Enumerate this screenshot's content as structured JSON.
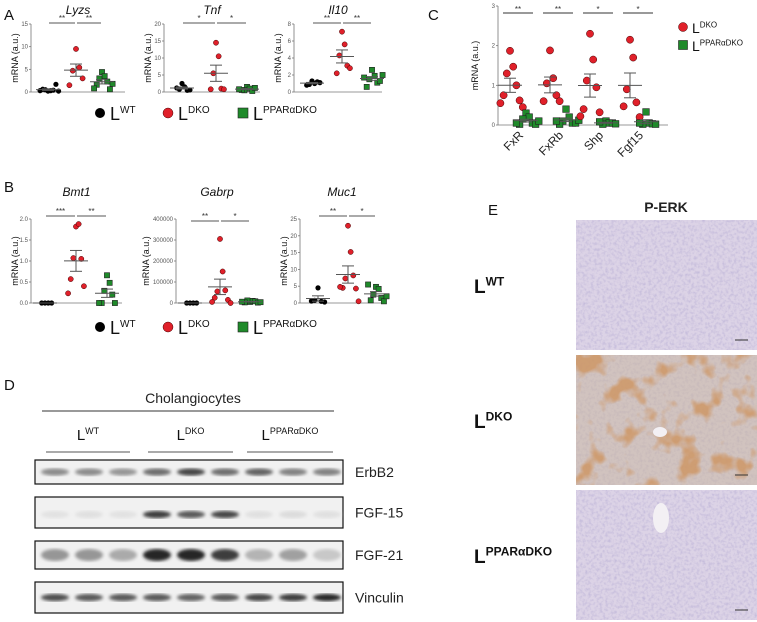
{
  "panel_labels": {
    "A": "A",
    "B": "B",
    "C": "C",
    "D": "D",
    "E": "E"
  },
  "legend": {
    "entries": [
      {
        "base": "L",
        "sup": "WT",
        "marker": "circle",
        "color": "#000000"
      },
      {
        "base": "L",
        "sup": "DKO",
        "marker": "circle",
        "color": "#e0202a"
      },
      {
        "base": "L",
        "sup": "PPARαDKO",
        "marker": "square",
        "color": "#1f8a2a"
      }
    ]
  },
  "colors": {
    "wt": "#000000",
    "dko": "#e0202a",
    "ppar": "#1f8a2a",
    "error_bar": "#555555"
  },
  "chart_data": [
    {
      "id": "lyzs",
      "panel": "A",
      "type": "scatter",
      "title": "Lyzs",
      "ylabel": "mRNA (a.u.)",
      "ylim": [
        0,
        15
      ],
      "yticks": [
        "0",
        "5",
        "10",
        "15"
      ],
      "tickvals": [
        0,
        5,
        10,
        15
      ],
      "series": [
        {
          "group": "wt",
          "values": [
            0.2,
            0.3,
            0.5,
            0.4,
            0.6,
            1.7,
            0.3,
            0.2
          ]
        },
        {
          "group": "dko",
          "values": [
            9.5,
            5.4,
            4.7,
            3.0,
            1.5
          ]
        },
        {
          "group": "ppar",
          "values": [
            4.4,
            3.5,
            3.0,
            2.3,
            1.6,
            0.6,
            0.8,
            1.8
          ]
        }
      ],
      "significance": [
        "**",
        "**"
      ]
    },
    {
      "id": "tnf",
      "panel": "A",
      "type": "scatter",
      "title": "Tnf",
      "ylabel": "mRNA (a.u.)",
      "ylim": [
        0,
        20
      ],
      "yticks": [
        "0",
        "5",
        "10",
        "15",
        "20"
      ],
      "tickvals": [
        0,
        5,
        10,
        15,
        20
      ],
      "series": [
        {
          "group": "wt",
          "values": [
            2.5,
            1.5,
            0.8,
            0.5,
            1.2,
            0.6
          ]
        },
        {
          "group": "dko",
          "values": [
            14.5,
            10.5,
            5.5,
            1.0,
            0.8,
            0.8
          ]
        },
        {
          "group": "ppar",
          "values": [
            1.5,
            1.0,
            0.5,
            0.3,
            0.6,
            1.2,
            0.8
          ]
        }
      ],
      "significance": [
        "*",
        "*"
      ]
    },
    {
      "id": "il10",
      "panel": "A",
      "type": "scatter",
      "title": "Il10",
      "ylabel": "mRNA (a.u.)",
      "ylim": [
        0,
        8
      ],
      "yticks": [
        "0",
        "2",
        "4",
        "6",
        "8"
      ],
      "tickvals": [
        0,
        2,
        4,
        6,
        8
      ],
      "series": [
        {
          "group": "wt",
          "values": [
            1.3,
            1.0,
            0.9,
            1.2,
            0.8,
            1.1
          ]
        },
        {
          "group": "dko",
          "values": [
            7.1,
            5.6,
            4.3,
            3.1,
            2.2,
            2.8
          ]
        },
        {
          "group": "ppar",
          "values": [
            2.6,
            1.9,
            1.5,
            1.1,
            0.6,
            1.3,
            1.7,
            2.0
          ]
        }
      ],
      "significance": [
        "**",
        "**"
      ]
    },
    {
      "id": "bmt1",
      "panel": "B",
      "type": "scatter",
      "title": "Bmt1",
      "ylabel": "mRNA (a.u.)",
      "ylim": [
        0,
        2
      ],
      "yticks": [
        "0.0",
        "0.5",
        "1.0",
        "1.5",
        "2.0"
      ],
      "tickvals": [
        0,
        0.5,
        1,
        1.5,
        2
      ],
      "series": [
        {
          "group": "wt",
          "values": [
            0,
            0,
            0,
            0
          ]
        },
        {
          "group": "dko",
          "values": [
            1.82,
            1.88,
            1.07,
            1.05,
            0.57,
            0.4,
            0.23
          ]
        },
        {
          "group": "ppar",
          "values": [
            0.66,
            0.48,
            0.29,
            0.2,
            0,
            0,
            0
          ]
        }
      ],
      "significance": [
        "***",
        "**"
      ]
    },
    {
      "id": "gabrp",
      "panel": "B",
      "type": "scatter",
      "title": "Gabrp",
      "ylabel": "mRNA (a.u.)",
      "ylim": [
        0,
        400000
      ],
      "yticks": [
        "0",
        "100000",
        "200000",
        "300000",
        "400000"
      ],
      "tickvals": [
        0,
        100000,
        200000,
        300000,
        400000
      ],
      "series": [
        {
          "group": "wt",
          "values": [
            0,
            0,
            0,
            0
          ]
        },
        {
          "group": "dko",
          "values": [
            305000,
            150000,
            55000,
            60000,
            25000,
            15000,
            5000,
            0
          ]
        },
        {
          "group": "ppar",
          "values": [
            5000,
            10000,
            12000,
            8000,
            3000,
            2000,
            6000,
            4000
          ]
        }
      ],
      "significance": [
        "**",
        "*"
      ]
    },
    {
      "id": "muc1",
      "panel": "B",
      "type": "scatter",
      "title": "Muc1",
      "ylabel": "mRNA (a.u.)",
      "ylim": [
        0,
        25
      ],
      "yticks": [
        "0",
        "5",
        "10",
        "15",
        "20",
        "25"
      ],
      "tickvals": [
        0,
        5,
        10,
        15,
        20,
        25
      ],
      "series": [
        {
          "group": "wt",
          "values": [
            4.5,
            0.5,
            0.8,
            0.3,
            0.6
          ]
        },
        {
          "group": "dko",
          "values": [
            23,
            15.2,
            7.3,
            8.2,
            4.5,
            4.3,
            4.8,
            0.5
          ]
        },
        {
          "group": "ppar",
          "values": [
            4.8,
            4.2,
            2.5,
            1.5,
            0.8,
            0.5,
            5.5,
            2.0
          ]
        }
      ],
      "significance": [
        "**",
        "*"
      ]
    },
    {
      "id": "c",
      "panel": "C",
      "type": "scatter",
      "title": "",
      "ylabel": "mRNA (a.u.)",
      "ylim": [
        0,
        3
      ],
      "yticks": [
        "0",
        "1",
        "2",
        "3"
      ],
      "tickvals": [
        0,
        1,
        2,
        3
      ],
      "categories": [
        "FxR",
        "FxRb",
        "Shp",
        "Fgf15"
      ],
      "series": [
        {
          "category": "FxR",
          "dko": [
            1.87,
            1.47,
            1.3,
            1.0,
            0.75,
            0.62,
            0.55,
            0.45
          ],
          "ppar": [
            0.3,
            0.2,
            0.15,
            0.05,
            0.02,
            0.02,
            0.05,
            0.1
          ]
        },
        {
          "category": "FxRb",
          "dko": [
            1.88,
            1.18,
            1.05,
            0.75,
            0.6,
            0.6
          ],
          "ppar": [
            0.4,
            0.2,
            0.1,
            0.05,
            0.02,
            0.05,
            0.1,
            0.12
          ]
        },
        {
          "category": "Shp",
          "dko": [
            2.3,
            1.65,
            1.12,
            0.95,
            0.4,
            0.32,
            0.22
          ],
          "ppar": [
            0.1,
            0.05,
            0.02,
            0.05,
            0.08,
            0.03
          ]
        },
        {
          "category": "Fgf15",
          "dko": [
            2.15,
            1.7,
            0.9,
            0.57,
            0.47,
            0.2
          ],
          "ppar": [
            0.33,
            0.05,
            0.02,
            0.03,
            0.05,
            0.02
          ]
        }
      ],
      "significance": [
        "**",
        "**",
        "*",
        "*"
      ],
      "legend": [
        {
          "base": "L",
          "sup": "DKO",
          "marker": "circle"
        },
        {
          "base": "L",
          "sup": "PPARαDKO",
          "marker": "square"
        }
      ],
      "legend_position": "right"
    }
  ],
  "western_blot": {
    "title": "Cholangiocytes",
    "groups": [
      {
        "base": "L",
        "sup": "WT"
      },
      {
        "base": "L",
        "sup": "DKO"
      },
      {
        "base": "L",
        "sup": "PPARαDKO"
      }
    ],
    "rows": [
      {
        "label": "ErbB2",
        "intensities": [
          0.45,
          0.45,
          0.4,
          0.6,
          0.8,
          0.6,
          0.65,
          0.5,
          0.5
        ]
      },
      {
        "label": "FGF-15",
        "intensities": [
          0.02,
          0.03,
          0.02,
          0.85,
          0.7,
          0.8,
          0.03,
          0.05,
          0.03
        ]
      },
      {
        "label": "FGF-21",
        "intensities": [
          0.4,
          0.4,
          0.3,
          0.95,
          0.95,
          0.85,
          0.25,
          0.35,
          0.15
        ]
      },
      {
        "label": "Vinculin",
        "intensities": [
          0.75,
          0.7,
          0.7,
          0.7,
          0.65,
          0.7,
          0.8,
          0.85,
          0.95
        ]
      }
    ]
  },
  "histology": {
    "title": "P-ERK",
    "rows": [
      {
        "base": "L",
        "sup": "WT",
        "staining": 0.05
      },
      {
        "base": "L",
        "sup": "DKO",
        "staining": 0.8
      },
      {
        "base": "L",
        "sup": "PPARαDKO",
        "staining": 0.1
      }
    ]
  }
}
